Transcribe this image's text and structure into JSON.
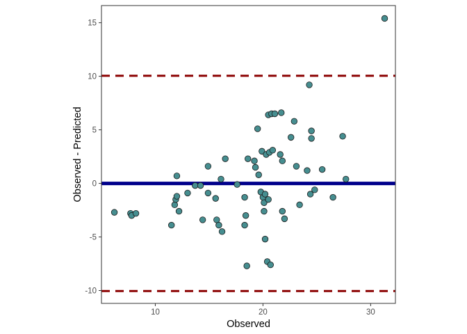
{
  "chart_data": {
    "type": "scatter",
    "title": "",
    "xlabel": "Observed",
    "ylabel": "Observed - Predicted",
    "xlim": [
      5,
      32.3
    ],
    "ylim": [
      -11.2,
      16.6
    ],
    "x_ticks": [
      10,
      20,
      30
    ],
    "y_ticks": [
      -10,
      -5,
      0,
      5,
      10,
      15
    ],
    "x_tick_labels": [
      "10",
      "20",
      "30"
    ],
    "y_tick_labels": [
      "-10",
      "-5",
      "0",
      "5",
      "10",
      "15"
    ],
    "grid": false,
    "legend": "none",
    "reference_lines": [
      {
        "name": "zero",
        "y": 0,
        "style": "solid",
        "color": "#00008b"
      },
      {
        "name": "upper-limit",
        "y": 10.05,
        "style": "dashed",
        "color": "#8b0000"
      },
      {
        "name": "lower-limit",
        "y": -10.05,
        "style": "dashed",
        "color": "#8b0000"
      }
    ],
    "point_fill": "#468e90",
    "point_stroke": "#1a1a1a",
    "points": [
      {
        "x": 6.2,
        "y": -2.7
      },
      {
        "x": 7.7,
        "y": -2.8
      },
      {
        "x": 7.8,
        "y": -3.0
      },
      {
        "x": 8.2,
        "y": -2.8
      },
      {
        "x": 11.5,
        "y": -3.9
      },
      {
        "x": 11.8,
        "y": -2.0
      },
      {
        "x": 11.9,
        "y": -1.5
      },
      {
        "x": 12.0,
        "y": -1.2
      },
      {
        "x": 12.0,
        "y": 0.7
      },
      {
        "x": 12.2,
        "y": -2.6
      },
      {
        "x": 13.0,
        "y": -0.9
      },
      {
        "x": 13.7,
        "y": -0.2
      },
      {
        "x": 14.2,
        "y": -0.2
      },
      {
        "x": 14.4,
        "y": -3.4
      },
      {
        "x": 14.9,
        "y": -0.9
      },
      {
        "x": 14.9,
        "y": 1.6
      },
      {
        "x": 15.6,
        "y": -1.4
      },
      {
        "x": 15.7,
        "y": -3.4
      },
      {
        "x": 15.9,
        "y": -3.9
      },
      {
        "x": 16.1,
        "y": 0.4
      },
      {
        "x": 16.2,
        "y": -4.5
      },
      {
        "x": 16.5,
        "y": 2.3
      },
      {
        "x": 17.6,
        "y": -0.1
      },
      {
        "x": 18.3,
        "y": -3.9
      },
      {
        "x": 18.3,
        "y": -1.3
      },
      {
        "x": 18.4,
        "y": -3.0
      },
      {
        "x": 18.5,
        "y": -7.7
      },
      {
        "x": 18.6,
        "y": 2.3
      },
      {
        "x": 19.2,
        "y": 2.1
      },
      {
        "x": 19.3,
        "y": 1.5
      },
      {
        "x": 19.5,
        "y": 5.1
      },
      {
        "x": 19.6,
        "y": 0.8
      },
      {
        "x": 19.8,
        "y": -0.8
      },
      {
        "x": 19.9,
        "y": 3.0
      },
      {
        "x": 20.0,
        "y": -1.3
      },
      {
        "x": 20.1,
        "y": -1.8
      },
      {
        "x": 20.1,
        "y": -2.6
      },
      {
        "x": 20.2,
        "y": -1.0
      },
      {
        "x": 20.2,
        "y": -5.2
      },
      {
        "x": 20.3,
        "y": 2.7
      },
      {
        "x": 20.4,
        "y": -7.3
      },
      {
        "x": 20.5,
        "y": 6.4
      },
      {
        "x": 20.5,
        "y": -1.5
      },
      {
        "x": 20.6,
        "y": 2.9
      },
      {
        "x": 20.7,
        "y": -7.6
      },
      {
        "x": 20.8,
        "y": 6.5
      },
      {
        "x": 20.9,
        "y": 3.1
      },
      {
        "x": 21.1,
        "y": 6.5
      },
      {
        "x": 21.6,
        "y": 2.7
      },
      {
        "x": 21.7,
        "y": 6.6
      },
      {
        "x": 21.8,
        "y": -2.6
      },
      {
        "x": 21.8,
        "y": 2.1
      },
      {
        "x": 22.0,
        "y": -3.3
      },
      {
        "x": 22.6,
        "y": 4.3
      },
      {
        "x": 22.9,
        "y": 5.8
      },
      {
        "x": 23.1,
        "y": 1.6
      },
      {
        "x": 23.4,
        "y": -2.0
      },
      {
        "x": 24.1,
        "y": 1.2
      },
      {
        "x": 24.3,
        "y": 9.2
      },
      {
        "x": 24.4,
        "y": -1.0
      },
      {
        "x": 24.5,
        "y": 4.2
      },
      {
        "x": 24.5,
        "y": 4.9
      },
      {
        "x": 24.8,
        "y": -0.6
      },
      {
        "x": 25.5,
        "y": 1.3
      },
      {
        "x": 26.5,
        "y": -1.3
      },
      {
        "x": 27.4,
        "y": 4.4
      },
      {
        "x": 27.7,
        "y": 0.4
      },
      {
        "x": 31.3,
        "y": 15.4
      }
    ]
  }
}
